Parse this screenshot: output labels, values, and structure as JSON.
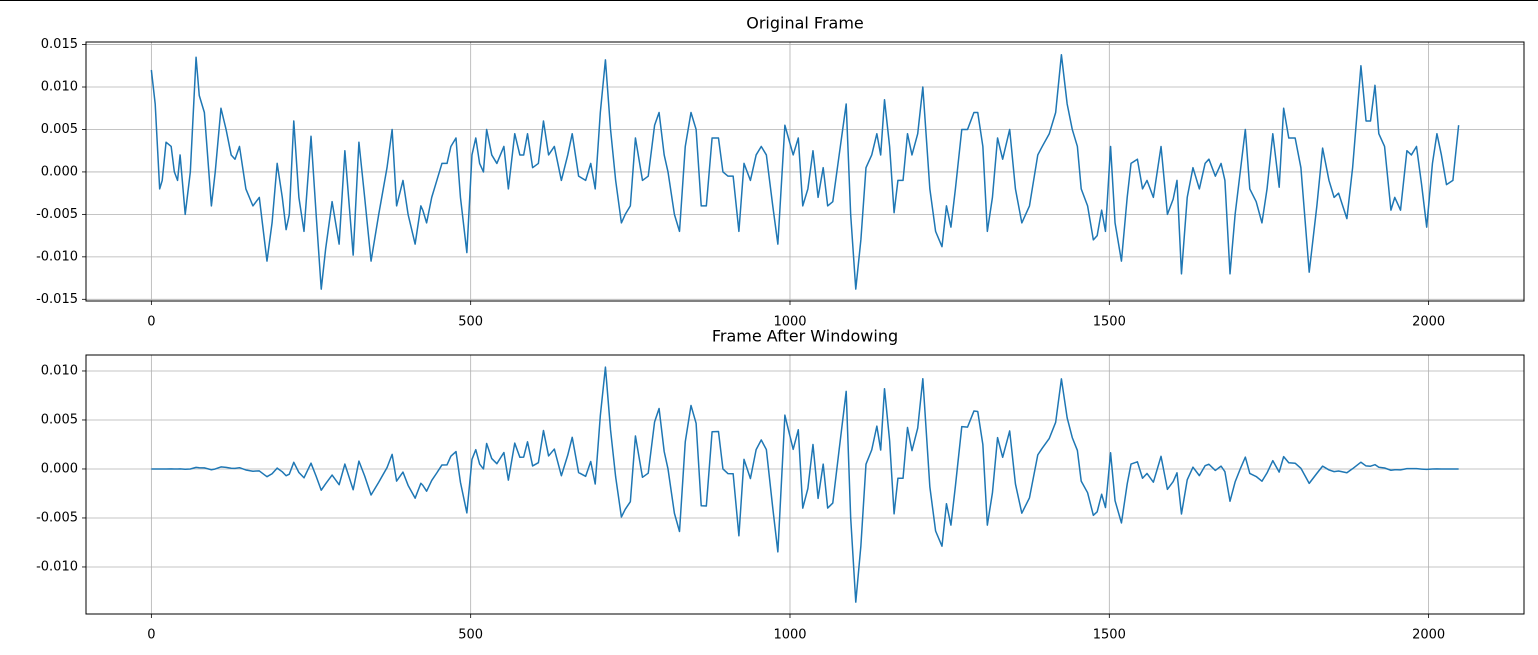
{
  "chart_data": [
    {
      "type": "line",
      "title": "Original Frame",
      "color": "#1f77b4",
      "grid": true,
      "xlim": [
        -102.35,
        2149.35
      ],
      "xticks": [
        0,
        500,
        1000,
        1500,
        2000
      ],
      "ylim": [
        -0.0152,
        0.0153
      ],
      "yticks": [
        -0.015,
        {
          "value": -0.01,
          "label": "-0.010"
        },
        -0.005,
        {
          "value": 0,
          "label": "0.000"
        },
        0.005,
        {
          "value": 0.01,
          "label": "0.010"
        },
        0.015
      ],
      "x": [
        0,
        6,
        13,
        17,
        23,
        31,
        36,
        41,
        45,
        53,
        61,
        70,
        75,
        83,
        94,
        100,
        109,
        117,
        125,
        131,
        138,
        148,
        159,
        169,
        181,
        189,
        197,
        205,
        211,
        216,
        223,
        231,
        239,
        250,
        258,
        266,
        273,
        283,
        294,
        303,
        316,
        325,
        334,
        344,
        356,
        369,
        377,
        384,
        394,
        402,
        413,
        422,
        425,
        431,
        439,
        447,
        455,
        463,
        469,
        477,
        484,
        494,
        502,
        508,
        514,
        520,
        525,
        533,
        541,
        552,
        559,
        569,
        577,
        583,
        589,
        597,
        606,
        614,
        622,
        631,
        642,
        652,
        659,
        669,
        680,
        688,
        695,
        703,
        711,
        719,
        727,
        736,
        742,
        750,
        758,
        769,
        778,
        788,
        795,
        803,
        809,
        819,
        827,
        836,
        845,
        853,
        861,
        869,
        878,
        888,
        895,
        903,
        911,
        920,
        928,
        938,
        947,
        955,
        963,
        973,
        981,
        992,
        1005,
        1013,
        1020,
        1028,
        1036,
        1044,
        1052,
        1059,
        1067,
        1077,
        1088,
        1095,
        1103,
        1111,
        1119,
        1128,
        1136,
        1142,
        1148,
        1156,
        1163,
        1169,
        1177,
        1184,
        1191,
        1200,
        1208,
        1219,
        1228,
        1238,
        1245,
        1252,
        1259,
        1269,
        1278,
        1288,
        1294,
        1302,
        1309,
        1317,
        1325,
        1333,
        1344,
        1353,
        1363,
        1375,
        1388,
        1395,
        1406,
        1416,
        1425,
        1434,
        1442,
        1450,
        1456,
        1466,
        1475,
        1481,
        1488,
        1494,
        1502,
        1509,
        1519,
        1528,
        1534,
        1544,
        1552,
        1559,
        1569,
        1581,
        1591,
        1600,
        1606,
        1613,
        1622,
        1631,
        1641,
        1650,
        1656,
        1666,
        1675,
        1681,
        1689,
        1697,
        1705,
        1713,
        1720,
        1730,
        1739,
        1747,
        1756,
        1766,
        1773,
        1781,
        1791,
        1800,
        1813,
        1825,
        1834,
        1844,
        1852,
        1859,
        1872,
        1881,
        1894,
        1902,
        1909,
        1916,
        1922,
        1931,
        1941,
        1947,
        1956,
        1966,
        1973,
        1981,
        1989,
        1997,
        2006,
        2013,
        2020,
        2028,
        2038,
        2047
      ],
      "values": [
        0.012,
        0.008,
        -0.002,
        -0.001,
        0.0035,
        0.003,
        0,
        -0.001,
        0.002,
        -0.005,
        0,
        0.0135,
        0.009,
        0.007,
        -0.004,
        0,
        0.0075,
        0.005,
        0.002,
        0.0015,
        0.003,
        -0.002,
        -0.004,
        -0.003,
        -0.0105,
        -0.006,
        0.001,
        -0.003,
        -0.0068,
        -0.005,
        0.006,
        -0.003,
        -0.007,
        0.0042,
        -0.005,
        -0.0138,
        -0.009,
        -0.0035,
        -0.0085,
        0.0025,
        -0.0098,
        0.0035,
        -0.003,
        -0.0105,
        -0.005,
        0.0005,
        0.005,
        -0.004,
        -0.001,
        -0.005,
        -0.0085,
        -0.004,
        -0.0045,
        -0.006,
        -0.003,
        -0.001,
        0.001,
        0.001,
        0.003,
        0.004,
        -0.003,
        -0.0095,
        0.002,
        0.004,
        0.001,
        0,
        0.005,
        0.002,
        0.001,
        0.003,
        -0.002,
        0.0045,
        0.002,
        0.002,
        0.0045,
        0.0005,
        0.001,
        0.006,
        0.002,
        0.003,
        -0.001,
        0.002,
        0.0045,
        -0.0005,
        -0.001,
        0.001,
        -0.002,
        0.007,
        0.0132,
        0.005,
        -0.001,
        -0.006,
        -0.005,
        -0.004,
        0.004,
        -0.001,
        -0.0005,
        0.0055,
        0.007,
        0.002,
        0,
        -0.005,
        -0.007,
        0.003,
        0.007,
        0.005,
        -0.004,
        -0.004,
        0.004,
        0.004,
        0,
        -0.0005,
        -0.0005,
        -0.007,
        0.001,
        -0.001,
        0.002,
        0.003,
        0.002,
        -0.004,
        -0.0085,
        0.0055,
        0.002,
        0.004,
        -0.004,
        -0.002,
        0.0025,
        -0.003,
        0.0005,
        -0.004,
        -0.0035,
        0.002,
        0.008,
        -0.005,
        -0.0138,
        -0.008,
        0.0005,
        0.002,
        0.0045,
        0.002,
        0.0085,
        0.003,
        -0.0048,
        -0.001,
        -0.001,
        0.0045,
        0.002,
        0.0045,
        0.01,
        -0.002,
        -0.007,
        -0.0088,
        -0.004,
        -0.0065,
        -0.002,
        0.005,
        0.005,
        0.007,
        0.007,
        0.003,
        -0.007,
        -0.003,
        0.004,
        0.0015,
        0.005,
        -0.002,
        -0.006,
        -0.004,
        0.002,
        0.003,
        0.0045,
        0.007,
        0.0138,
        0.008,
        0.005,
        0.003,
        -0.002,
        -0.004,
        -0.008,
        -0.0075,
        -0.0045,
        -0.007,
        0.003,
        -0.006,
        -0.0105,
        -0.003,
        0.001,
        0.0015,
        -0.002,
        -0.001,
        -0.003,
        0.003,
        -0.005,
        -0.0032,
        -0.001,
        -0.012,
        -0.003,
        0.0005,
        -0.002,
        0.001,
        0.0015,
        -0.0005,
        0.001,
        -0.001,
        -0.012,
        -0.005,
        0,
        0.005,
        -0.002,
        -0.0035,
        -0.006,
        -0.002,
        0.0045,
        -0.0018,
        0.0075,
        0.004,
        0.004,
        0.0005,
        -0.0118,
        -0.004,
        0.0028,
        -0.001,
        -0.003,
        -0.0025,
        -0.0055,
        0.0005,
        0.0125,
        0.006,
        0.006,
        0.0102,
        0.0045,
        0.003,
        -0.0045,
        -0.003,
        -0.0045,
        0.0025,
        0.002,
        0.003,
        -0.0015,
        -0.0065,
        0.001,
        0.0045,
        0.002,
        -0.0015,
        -0.001,
        0.0055
      ]
    },
    {
      "type": "line",
      "title": "Frame After Windowing",
      "color": "#1f77b4",
      "grid": true,
      "xlim": [
        -102.35,
        2149.35
      ],
      "xticks": [
        0,
        500,
        1000,
        1500,
        2000
      ],
      "ylim": [
        -0.0148,
        0.01163
      ],
      "yticks": [
        {
          "value": -0.01,
          "label": "-0.010"
        },
        -0.005,
        {
          "value": 0,
          "label": "0.000"
        },
        0.005,
        {
          "value": 0.01,
          "label": "0.010"
        }
      ],
      "x": [
        0,
        6,
        13,
        17,
        23,
        31,
        36,
        41,
        45,
        53,
        61,
        70,
        75,
        83,
        94,
        100,
        109,
        117,
        125,
        131,
        138,
        148,
        159,
        169,
        181,
        189,
        197,
        205,
        211,
        216,
        223,
        231,
        239,
        250,
        258,
        266,
        273,
        283,
        294,
        303,
        316,
        325,
        334,
        344,
        356,
        369,
        377,
        384,
        394,
        402,
        413,
        422,
        425,
        431,
        439,
        447,
        455,
        463,
        469,
        477,
        484,
        494,
        502,
        508,
        514,
        520,
        525,
        533,
        541,
        552,
        559,
        569,
        577,
        583,
        589,
        597,
        606,
        614,
        622,
        631,
        642,
        652,
        659,
        669,
        680,
        688,
        695,
        703,
        711,
        719,
        727,
        736,
        742,
        750,
        758,
        769,
        778,
        788,
        795,
        803,
        809,
        819,
        827,
        836,
        845,
        853,
        861,
        869,
        878,
        888,
        895,
        903,
        911,
        920,
        928,
        938,
        947,
        955,
        963,
        973,
        981,
        992,
        1005,
        1013,
        1020,
        1028,
        1036,
        1044,
        1052,
        1059,
        1067,
        1077,
        1088,
        1095,
        1103,
        1111,
        1119,
        1128,
        1136,
        1142,
        1148,
        1156,
        1163,
        1169,
        1177,
        1184,
        1191,
        1200,
        1208,
        1219,
        1228,
        1238,
        1245,
        1252,
        1259,
        1269,
        1278,
        1288,
        1294,
        1302,
        1309,
        1317,
        1325,
        1333,
        1344,
        1353,
        1363,
        1375,
        1388,
        1395,
        1406,
        1416,
        1425,
        1434,
        1442,
        1450,
        1456,
        1466,
        1475,
        1481,
        1488,
        1494,
        1502,
        1509,
        1519,
        1528,
        1534,
        1544,
        1552,
        1559,
        1569,
        1581,
        1591,
        1600,
        1606,
        1613,
        1622,
        1631,
        1641,
        1650,
        1656,
        1666,
        1675,
        1681,
        1689,
        1697,
        1705,
        1713,
        1720,
        1730,
        1739,
        1747,
        1756,
        1766,
        1773,
        1781,
        1791,
        1800,
        1813,
        1825,
        1834,
        1844,
        1852,
        1859,
        1872,
        1881,
        1894,
        1902,
        1909,
        1916,
        1922,
        1931,
        1941,
        1947,
        1956,
        1966,
        1973,
        1981,
        1989,
        1997,
        2006,
        2013,
        2020,
        2028,
        2038,
        2047
      ],
      "values": [
        0,
        0,
        0,
        0,
        0,
        1e-05,
        0,
        0,
        1e-05,
        -3e-05,
        0,
        0.00016,
        0.00012,
        0.00011,
        -8e-05,
        0,
        0.00021,
        0.00016,
        7e-05,
        6e-05,
        0.00013,
        -0.0001,
        -0.00023,
        -0.0002,
        -0.00079,
        -0.00049,
        9e-05,
        -0.00029,
        -0.00069,
        -0.00053,
        0.00068,
        -0.00036,
        -0.0009,
        0.00059,
        -0.00074,
        -0.00217,
        -0.0015,
        -0.00062,
        -0.00161,
        0.0005,
        -0.00212,
        0.0008,
        -0.00072,
        -0.00266,
        -0.00135,
        0.00014,
        0.00149,
        -0.00124,
        -0.00032,
        -0.00167,
        -0.00298,
        -0.00146,
        -0.00166,
        -0.00227,
        -0.00117,
        -0.0004,
        0.00041,
        0.00042,
        0.0013,
        0.00178,
        -0.00137,
        -0.00448,
        0.00097,
        0.00197,
        0.0005,
        0,
        0.0026,
        0.00106,
        0.00054,
        0.00168,
        -0.00114,
        0.00264,
        0.0012,
        0.00121,
        0.00277,
        0.00031,
        0.00064,
        0.00392,
        0.00133,
        0.00203,
        -0.00069,
        0.00141,
        0.00323,
        -0.00037,
        -0.00075,
        0.00076,
        -0.00153,
        0.00544,
        0.01039,
        0.00398,
        -0.00081,
        -0.0049,
        -0.00412,
        -0.00334,
        0.00337,
        -0.00085,
        -0.00043,
        0.00481,
        0.00617,
        0.00178,
        0,
        -0.00452,
        -0.00638,
        0.00276,
        0.00648,
        0.00466,
        -0.00376,
        -0.00378,
        0.0038,
        0.00383,
        0,
        -0.00048,
        -0.00049,
        -0.00682,
        0.00098,
        -0.00098,
        0.00197,
        0.00296,
        0.00198,
        -0.00397,
        -0.00846,
        0.00549,
        0.002,
        0.004,
        -0.004,
        -0.002,
        0.0025,
        -0.003,
        0.0005,
        -0.00399,
        -0.00348,
        0.00199,
        0.00792,
        -0.00494,
        -0.01359,
        -0.00785,
        0.00049,
        0.00195,
        0.00437,
        0.00193,
        0.00819,
        0.00287,
        -0.00458,
        -0.00095,
        -0.00095,
        0.00423,
        0.00187,
        0.00417,
        0.00921,
        -0.00183,
        -0.00633,
        -0.00788,
        -0.00355,
        -0.00573,
        -0.00175,
        0.00432,
        0.00427,
        0.00591,
        0.00586,
        0.00248,
        -0.00573,
        -0.00243,
        0.0032,
        0.00119,
        0.00388,
        -0.00153,
        -0.00451,
        -0.00294,
        0.00144,
        0.00212,
        0.00312,
        0.00476,
        0.00919,
        0.00522,
        0.0032,
        0.00189,
        -0.00124,
        -0.00242,
        -0.00473,
        -0.00437,
        -0.00258,
        -0.00394,
        0.00165,
        -0.00324,
        -0.00551,
        -0.00153,
        0.0005,
        0.00073,
        -0.00095,
        -0.00046,
        -0.00135,
        0.00129,
        -0.00208,
        -0.00129,
        -0.00039,
        -0.0046,
        -0.00111,
        0.00018,
        -0.00068,
        0.00033,
        0.00048,
        -0.00015,
        0.00029,
        -0.00028,
        -0.00329,
        -0.00132,
        0,
        0.00121,
        -0.00046,
        -0.00077,
        -0.00125,
        -0.0004,
        0.00085,
        -0.00032,
        0.00126,
        0.00063,
        0.00059,
        7e-05,
        -0.00147,
        -0.00045,
        0.00029,
        -0.0001,
        -0.00027,
        -0.00021,
        -0.00039,
        3e-05,
        0.00069,
        0.00031,
        0.00028,
        0.00044,
        0.00018,
        0.0001,
        -0.00013,
        -8e-05,
        -9e-05,
        4e-05,
        3e-05,
        3e-05,
        -1e-05,
        -4e-05,
        0,
        1e-05,
        0,
        0,
        0,
        0
      ]
    }
  ]
}
